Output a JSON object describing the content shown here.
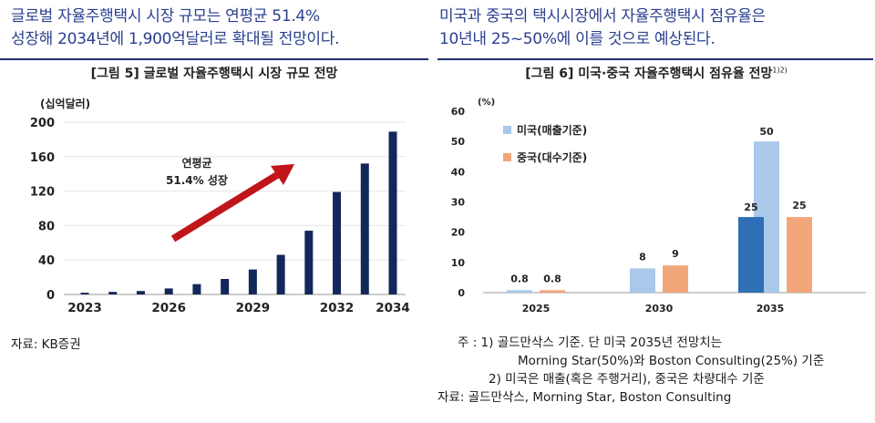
{
  "left": {
    "headline": [
      "글로벌 자율주행택시 시장 규모는 연평균 51.4%",
      "성장해 2034년에 1,900억달러로 확대될 전망이다."
    ],
    "figure_title": "[그림 5] 글로벌 자율주행택시 시장 규모 전망",
    "source": "자료: KB증권"
  },
  "right": {
    "headline": [
      "미국과 중국의 택시시장에서 자율주행택시 점유율은",
      "10년내 25~50%에 이를 것으로 예상된다."
    ],
    "figure_title": "[그림 6] 미국·중국 자율주행택시 점유율 전망",
    "figure_title_sup": "1)2)",
    "notes": [
      "주 : 1) 골드만삭스 기준. 단 미국 2035년 전망치는",
      "Morning Star(50%)와 Boston Consulting(25%) 기준",
      "2) 미국은 매출(혹은 주행거리), 중국은 차량대수 기준",
      "자료: 골드만삭스, Morning Star, Boston Consulting"
    ]
  },
  "colors": {
    "headline": "#2a3f8f",
    "bar_navy": "#14275b",
    "arrow_red": "#c0161b",
    "us_light": "#a9c8ea",
    "us_dark": "#2e6fb6",
    "china": "#f2a77a"
  },
  "chart_data": [
    {
      "type": "bar",
      "title": "[그림 5] 글로벌 자율주행택시 시장 규모 전망",
      "ylabel": "(십억달러)",
      "xlabel": "",
      "ylim": [
        0,
        200
      ],
      "yticks": [
        0,
        40,
        80,
        120,
        160,
        200
      ],
      "categories": [
        "2023",
        "2024",
        "2025",
        "2026",
        "2027",
        "2028",
        "2029",
        "2030",
        "2031",
        "2032",
        "2033",
        "2034"
      ],
      "xtick_labels": [
        "2023",
        "2026",
        "2029",
        "2032",
        "2034"
      ],
      "values": [
        2,
        3,
        4,
        7,
        12,
        18,
        29,
        46,
        74,
        119,
        152,
        189
      ],
      "annotation": [
        "연평균",
        "51.4% 성장"
      ]
    },
    {
      "type": "bar",
      "title": "[그림 6] 미국·중국 자율주행택시 점유율 전망",
      "ylabel": "(%)",
      "xlabel": "",
      "ylim": [
        0,
        60
      ],
      "yticks": [
        0,
        10,
        20,
        30,
        40,
        50,
        60
      ],
      "categories": [
        "2025",
        "2030",
        "2035"
      ],
      "series": [
        {
          "name": "미국(매출기준)",
          "values": [
            0.8,
            8,
            25
          ],
          "alt_values": [
            null,
            null,
            50
          ]
        },
        {
          "name": "중국(대수기준)",
          "values": [
            0.8,
            9,
            25
          ]
        }
      ],
      "data_labels": {
        "us": [
          "0.8",
          "8",
          "25"
        ],
        "us_alt": [
          "",
          "",
          "50"
        ],
        "china": [
          "0.8",
          "9",
          "25"
        ]
      }
    }
  ]
}
